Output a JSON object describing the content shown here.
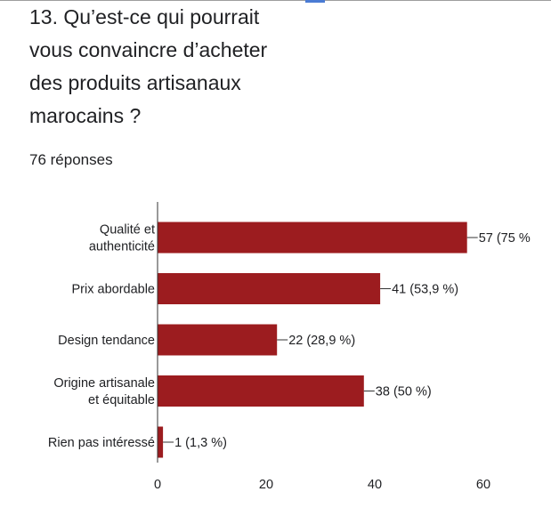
{
  "question": {
    "number": "13.",
    "text_lines": [
      "13. Qu’est-ce qui pourrait",
      "vous convaincre d’acheter",
      "des produits artisanaux",
      "marocains ?"
    ]
  },
  "responses_label": "76 réponses",
  "colors": {
    "bar": "#9c1c1f",
    "axis": "#333333",
    "text": "#202124"
  },
  "chart_data": {
    "type": "bar",
    "orientation": "horizontal",
    "categories": [
      [
        "Qualité et",
        "authenticité"
      ],
      [
        "Prix abordable"
      ],
      [
        "Design tendance"
      ],
      [
        "Origine artisanale",
        "et équitable"
      ],
      [
        "Rien pas intéressé"
      ]
    ],
    "values": [
      57,
      41,
      22,
      38,
      1
    ],
    "data_labels": [
      "57 (75 %",
      "41 (53,9 %)",
      "22 (28,9 %)",
      "38 (50 %)",
      "1 (1,3 %)"
    ],
    "xlim": [
      0,
      60
    ],
    "x_ticks": [
      0,
      20,
      40,
      60
    ],
    "grid": false,
    "legend": "none"
  }
}
